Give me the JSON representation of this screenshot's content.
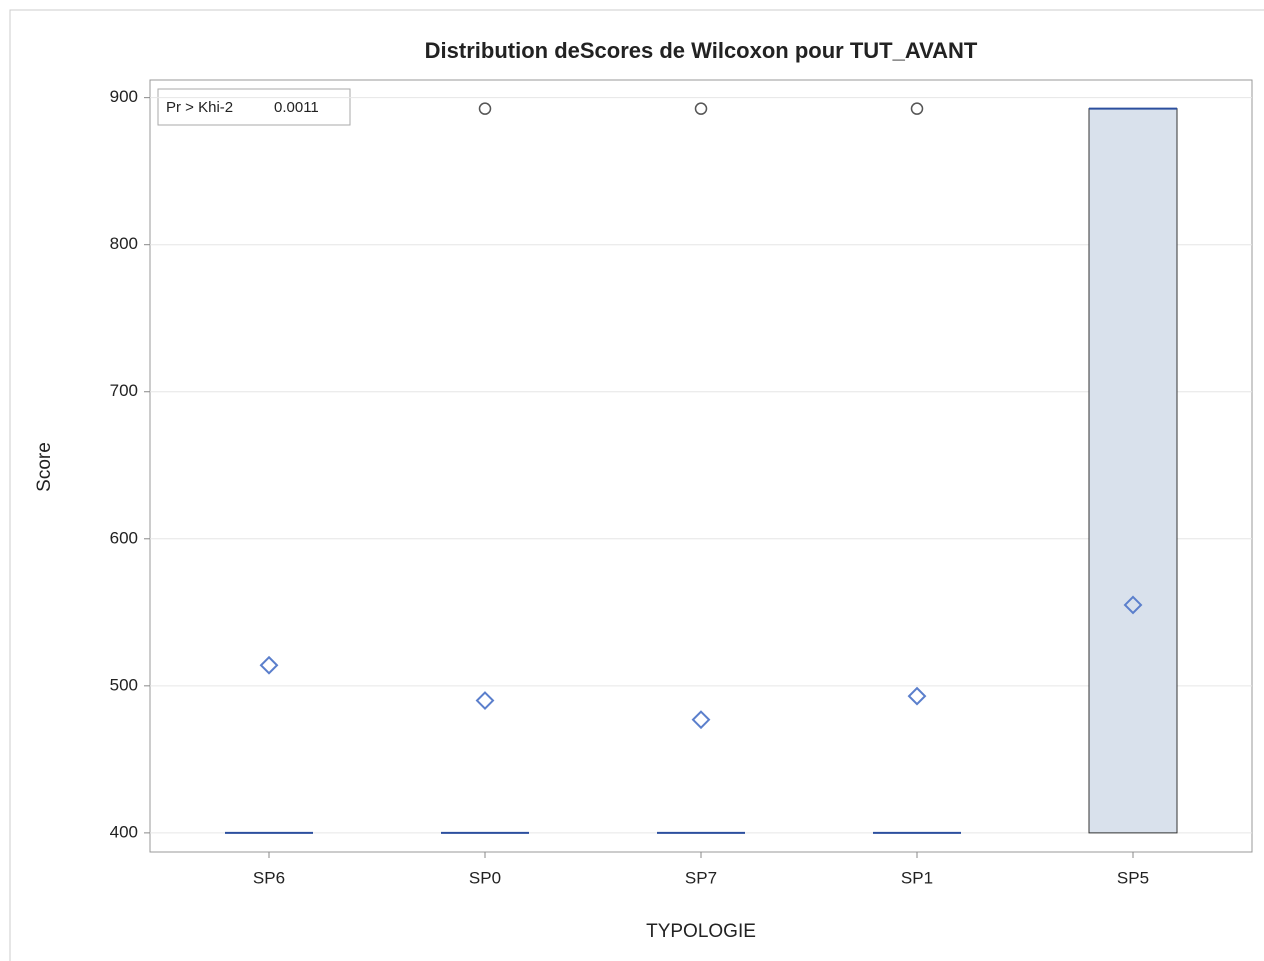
{
  "chart_data": {
    "type": "box",
    "title": "Distribution deScores de Wilcoxon pour TUT_AVANT",
    "x_label": "TYPOLOGIE",
    "y_label": "Score",
    "categories": [
      "SP6",
      "SP0",
      "SP7",
      "SP1",
      "SP5"
    ],
    "whisker_low": [
      400,
      400,
      400,
      400,
      400
    ],
    "q1": [
      400,
      400,
      400,
      400,
      400
    ],
    "median": [
      400,
      400,
      400,
      400,
      892.5
    ],
    "q3": [
      400,
      400,
      400,
      400,
      892.5
    ],
    "whisker_high": [
      400,
      400,
      400,
      400,
      892.5
    ],
    "mean": [
      514,
      490,
      477,
      493,
      555
    ],
    "outliers": [
      [],
      [
        892.5
      ],
      [
        892.5
      ],
      [
        892.5
      ],
      []
    ],
    "inset": {
      "label": "Pr > Khi-2",
      "value": "0.0011"
    },
    "ylim": [
      387,
      912
    ],
    "yticks": [
      400,
      500,
      600,
      700,
      800,
      900
    ],
    "grid": true,
    "box_color": "#d9e1ec",
    "median_color": "#2c4f9e",
    "mean_color": "#5b7fcc",
    "outlier_color": "#555555"
  }
}
